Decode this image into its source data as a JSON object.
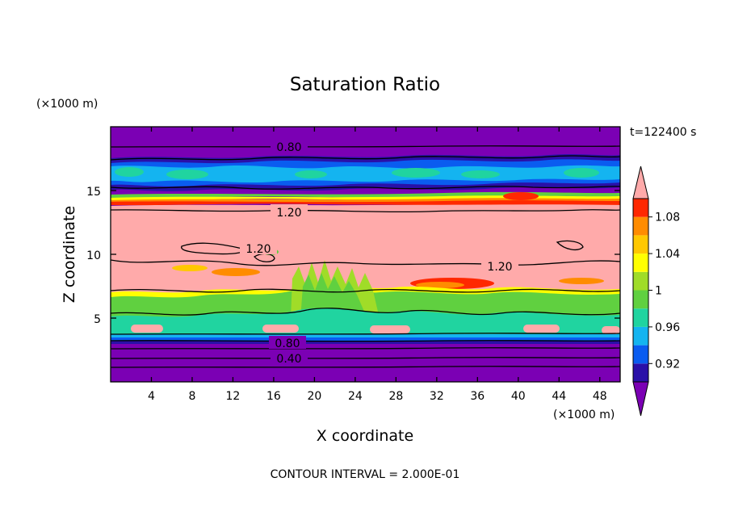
{
  "chart_data": {
    "type": "heatmap",
    "title": "Saturation Ratio",
    "xlabel": "X coordinate",
    "ylabel": "Z coordinate",
    "x_unit": "(×1000 m)",
    "y_unit": "(×1000 m)",
    "xlim": [
      0,
      50
    ],
    "ylim": [
      0,
      20
    ],
    "x_ticks": [
      "4",
      "8",
      "12",
      "16",
      "20",
      "24",
      "28",
      "32",
      "36",
      "40",
      "44",
      "48"
    ],
    "y_ticks": [
      "5",
      "10",
      "15"
    ],
    "time_label": "t=122400 s",
    "footer": "CONTOUR INTERVAL = 2.000E-01",
    "colorbar": {
      "tick_labels": [
        "1.08",
        "1.04",
        "1",
        "0.96",
        "0.92"
      ],
      "colors": [
        "#7b00b4",
        "#2a10a8",
        "#0a5cf0",
        "#14b4f0",
        "#20d4a0",
        "#60d040",
        "#a0dc28",
        "#ffff00",
        "#ffc800",
        "#ff8c00",
        "#ff2800",
        "#ffaaaa"
      ]
    },
    "contour_labels": [
      "0.80",
      "1.20",
      "1.20",
      "1.20",
      "0.80",
      "0.40"
    ]
  }
}
